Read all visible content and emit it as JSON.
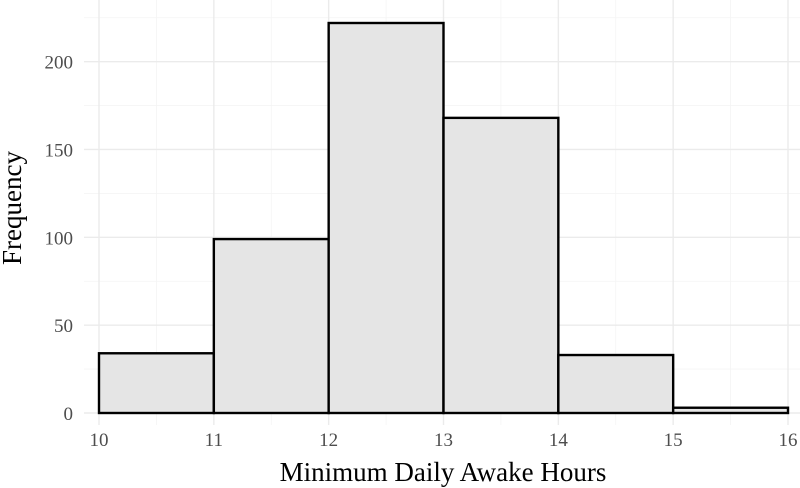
{
  "chart_data": {
    "type": "bar",
    "subtype": "histogram",
    "bins": [
      {
        "x0": 10,
        "x1": 11,
        "count": 34
      },
      {
        "x0": 11,
        "x1": 12,
        "count": 99
      },
      {
        "x0": 12,
        "x1": 13,
        "count": 222
      },
      {
        "x0": 13,
        "x1": 14,
        "count": 168
      },
      {
        "x0": 14,
        "x1": 15,
        "count": 33
      },
      {
        "x0": 15,
        "x1": 16,
        "count": 3
      }
    ],
    "xlabel": "Minimum Daily Awake Hours",
    "ylabel": "Frequency",
    "xlim": [
      10,
      16
    ],
    "ylim": [
      0,
      222
    ],
    "x_ticks": [
      10,
      11,
      12,
      13,
      14,
      15,
      16
    ],
    "x_tick_labels": [
      "10",
      "11",
      "12",
      "13",
      "14",
      "15",
      "16"
    ],
    "y_ticks": [
      0,
      50,
      100,
      150,
      200
    ],
    "y_tick_labels": [
      "0",
      "50",
      "100",
      "150",
      "200"
    ],
    "bar_fill": "#e5e5e5",
    "bar_stroke": "#000000",
    "grid": true,
    "legend": "none"
  }
}
